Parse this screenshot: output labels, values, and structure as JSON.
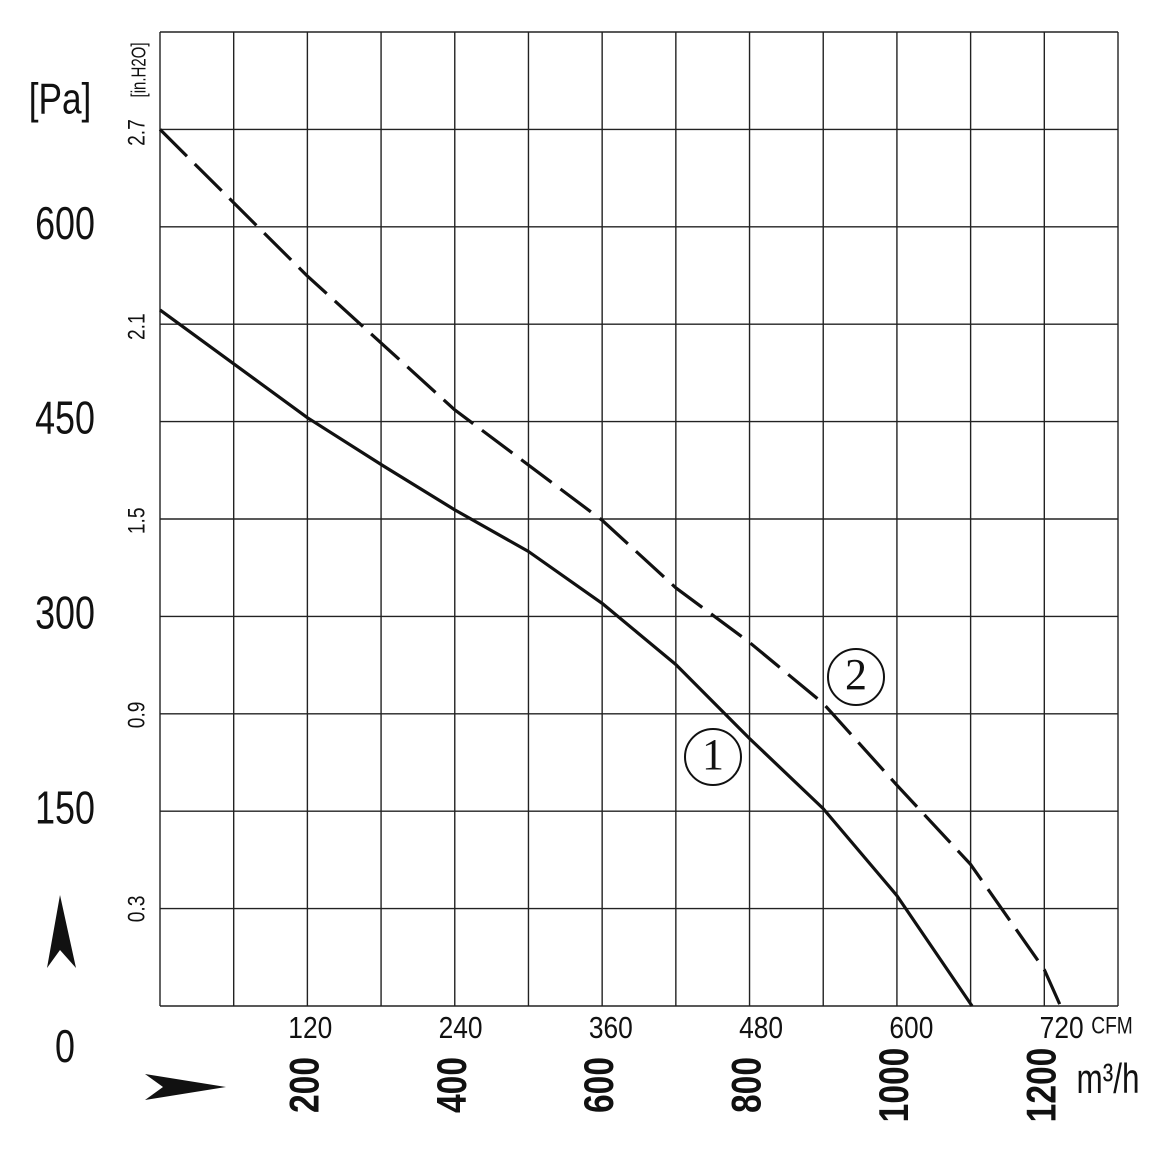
{
  "chart_data": {
    "type": "line",
    "y_label": "[Pa]",
    "y2_label": "[in.H2O]",
    "x_label": "m³/h",
    "x2_label": "CFM",
    "xlim": [
      0,
      1300
    ],
    "xticks": [
      200,
      400,
      600,
      800,
      1000,
      1200
    ],
    "x2lim": [
      0,
      765
    ],
    "x2ticks": [
      120,
      240,
      360,
      480,
      600,
      720
    ],
    "ylim": [
      0,
      750
    ],
    "yticks": [
      0,
      150,
      300,
      450,
      600
    ],
    "y2lim": [
      0,
      3.011
    ],
    "y2ticks": [
      0.3,
      0.9,
      1.5,
      2.1,
      2.7
    ],
    "grid": true,
    "series": [
      {
        "name": "1",
        "color": "#111111",
        "dash": "solid",
        "x": [
          0,
          200,
          300,
          400,
          500,
          600,
          700,
          800,
          900,
          1000,
          1102
        ],
        "values": [
          536,
          453,
          417,
          382,
          350,
          310,
          263,
          206,
          152,
          85,
          0
        ]
      },
      {
        "name": "2",
        "color": "#111111",
        "dash": "dashed",
        "x": [
          0,
          200,
          400,
          600,
          700,
          800,
          900,
          1000,
          1100,
          1200,
          1222
        ],
        "values": [
          675,
          562,
          459,
          374,
          322,
          280,
          233,
          170,
          109,
          28,
          0
        ]
      }
    ]
  }
}
